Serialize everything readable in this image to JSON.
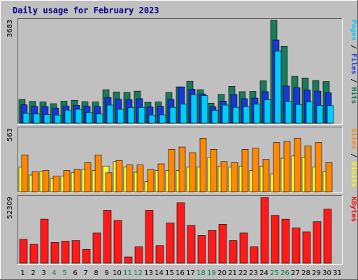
{
  "chart_data": [
    {
      "type": "bar",
      "title": "Daily usage for February 2023",
      "panel": "pages-files-hits",
      "ymax_label": "3683",
      "ylim": [
        0,
        3683
      ],
      "legend": [
        {
          "name": "Pages",
          "color": "#00ccff"
        },
        {
          "name": "Files",
          "color": "#1034e0"
        },
        {
          "name": "Hits",
          "color": "#0a7050"
        }
      ],
      "separator": " / ",
      "series": [
        {
          "name": "Hits",
          "color": "#1a7a5a",
          "values": [
            850,
            780,
            760,
            700,
            790,
            820,
            770,
            760,
            1200,
            1120,
            1100,
            1150,
            750,
            760,
            1100,
            1300,
            1500,
            1200,
            720,
            1030,
            1320,
            1130,
            1140,
            1520,
            3683,
            2750,
            1680,
            1620,
            1530,
            1490,
            0
          ]
        },
        {
          "name": "Files",
          "color": "#1538d8",
          "values": [
            660,
            600,
            590,
            540,
            610,
            640,
            600,
            590,
            920,
            860,
            840,
            880,
            580,
            600,
            850,
            1300,
            1220,
            1050,
            590,
            790,
            1030,
            880,
            900,
            1130,
            2980,
            1330,
            1270,
            1190,
            1150,
            1090,
            0
          ]
        },
        {
          "name": "Pages",
          "color": "#00ccff",
          "values": [
            350,
            330,
            310,
            290,
            470,
            500,
            380,
            330,
            650,
            500,
            560,
            570,
            290,
            300,
            570,
            680,
            1020,
            990,
            460,
            650,
            570,
            590,
            680,
            840,
            2580,
            780,
            670,
            760,
            640,
            630,
            0
          ]
        }
      ],
      "categories": [
        "1",
        "2",
        "3",
        "4",
        "5",
        "6",
        "7",
        "8",
        "9",
        "10",
        "11",
        "12",
        "13",
        "14",
        "15",
        "16",
        "17",
        "18",
        "19",
        "20",
        "21",
        "22",
        "23",
        "24",
        "25",
        "26",
        "27",
        "28",
        "29",
        "30",
        "31"
      ],
      "weekend_days": [
        "4",
        "5",
        "11",
        "12",
        "18",
        "19",
        "25",
        "26"
      ]
    },
    {
      "type": "bar",
      "panel": "sites-visits",
      "ymax_label": "563",
      "ylim": [
        0,
        563
      ],
      "legend": [
        {
          "name": "Sites",
          "color": "#ff8000"
        },
        {
          "name": "Visits",
          "color": "#ffff00"
        }
      ],
      "separator": " / ",
      "series": [
        {
          "name": "Visits",
          "color": "#ffff33",
          "values": [
            220,
            150,
            185,
            120,
            140,
            170,
            200,
            190,
            230,
            270,
            220,
            175,
            90,
            190,
            190,
            190,
            220,
            220,
            310,
            230,
            220,
            230,
            190,
            230,
            160,
            300,
            320,
            310,
            220,
            180,
            0
          ]
        },
        {
          "name": "Sites",
          "color": "#ff8800",
          "values": [
            330,
            180,
            190,
            140,
            190,
            200,
            260,
            330,
            170,
            280,
            240,
            240,
            200,
            250,
            380,
            400,
            350,
            480,
            380,
            270,
            260,
            380,
            390,
            290,
            440,
            450,
            480,
            410,
            440,
            260,
            0
          ]
        }
      ]
    },
    {
      "type": "bar",
      "panel": "kbytes",
      "ymax_label": "52309",
      "ylim": [
        0,
        52309
      ],
      "legend": [
        {
          "name": "KBytes",
          "color": "#ff0000"
        }
      ],
      "series": [
        {
          "name": "KBytes",
          "color": "#ff1a1a",
          "values": [
            19000,
            15000,
            35000,
            16500,
            17500,
            18000,
            11000,
            24000,
            42000,
            34000,
            5000,
            13000,
            42000,
            14000,
            32000,
            48000,
            30000,
            22000,
            26000,
            31000,
            18000,
            24000,
            13000,
            52309,
            38000,
            35000,
            28000,
            25000,
            33000,
            43000,
            0
          ]
        }
      ]
    }
  ],
  "colors": {
    "background": "#c0c0c0",
    "title": "#00008b",
    "weekday_label": "#000000",
    "weekend_label": "#008040"
  }
}
